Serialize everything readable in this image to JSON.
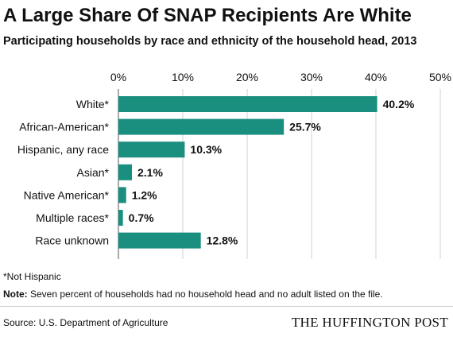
{
  "title": "A Large Share Of SNAP Recipients Are White",
  "subtitle": "Participating households by race and ethnicity of the household head, 2013",
  "colors": {
    "bar": "#1b8f7f",
    "grid": "#d0d0d0",
    "axis": "#555555",
    "text": "#111111"
  },
  "chart_data": {
    "type": "bar",
    "orientation": "horizontal",
    "categories": [
      "White*",
      "African-American*",
      "Hispanic, any race",
      "Asian*",
      "Native American*",
      "Multiple races*",
      "Race unknown"
    ],
    "values": [
      40.2,
      25.7,
      10.3,
      2.1,
      1.2,
      0.7,
      12.8
    ],
    "value_labels": [
      "40.2%",
      "25.7%",
      "10.3%",
      "2.1%",
      "1.2%",
      "0.7%",
      "12.8%"
    ],
    "xlim": [
      0,
      50
    ],
    "xticks": [
      0,
      10,
      20,
      30,
      40,
      50
    ],
    "xtick_labels": [
      "0%",
      "10%",
      "20%",
      "30%",
      "40%",
      "50%"
    ],
    "grid": true
  },
  "footnotes": {
    "not_hispanic": "*Not Hispanic",
    "note_label": "Note:",
    "note_text": " Seven percent of households had no household head and no adult listed on the file."
  },
  "source": "Source: U.S. Department of Agriculture",
  "brand": "THE HUFFINGTON POST"
}
